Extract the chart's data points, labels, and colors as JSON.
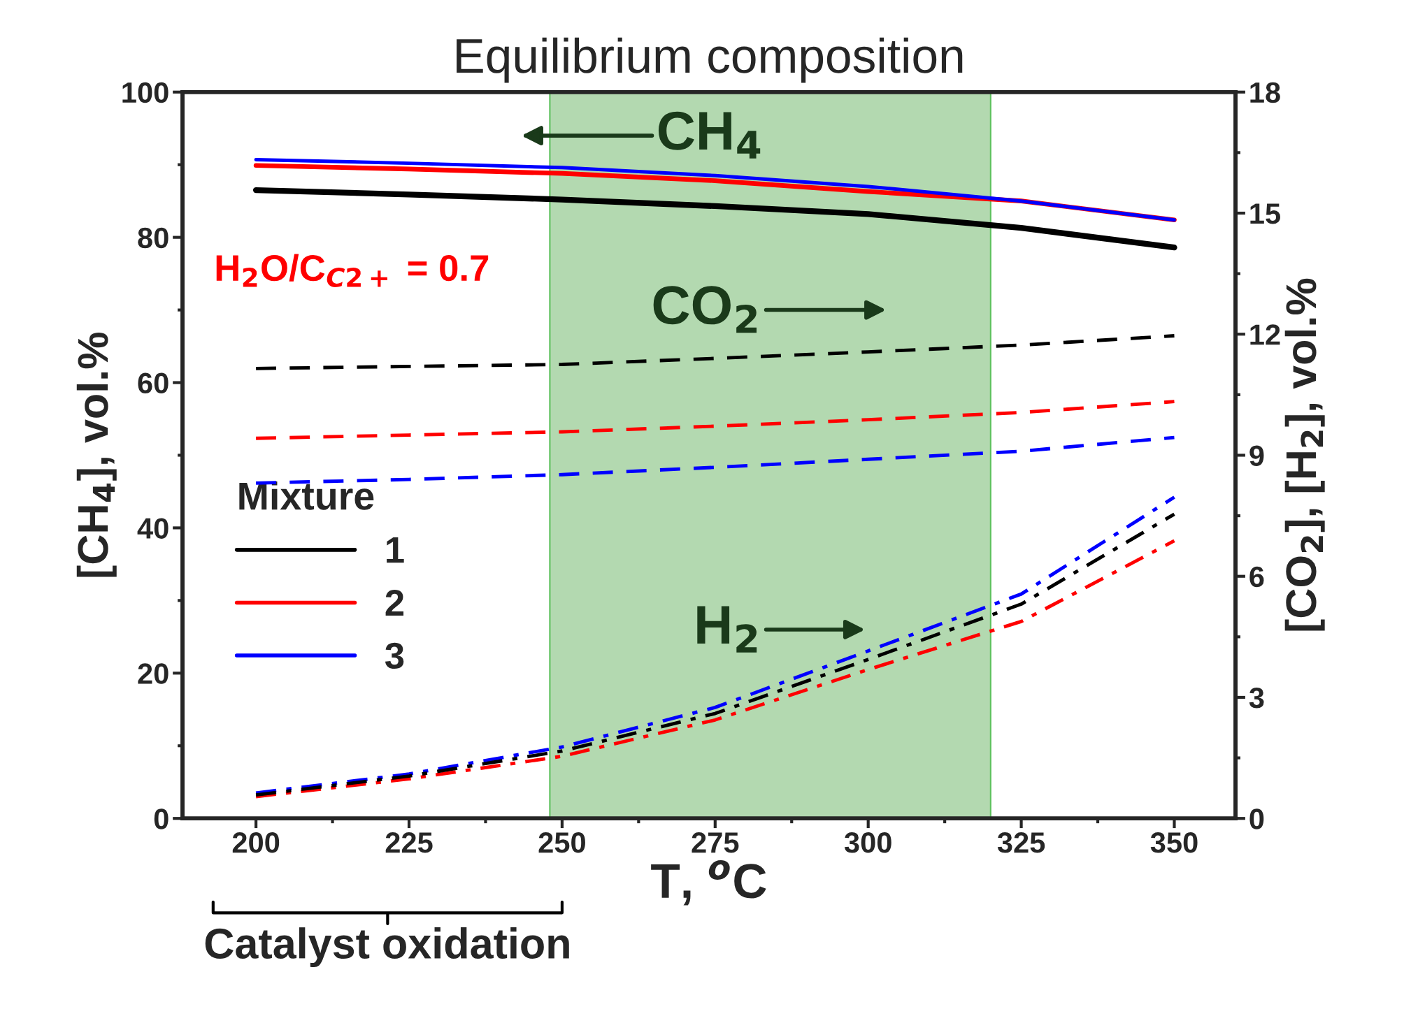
{
  "chart_data": {
    "type": "line",
    "title": "Equilibrium composition",
    "xlabel": "T, $^{o}$C",
    "ylabel": "[CH$_{4}$], vol.%",
    "y2label": "[CO$_{2}$], [H$_{2}$], vol.%",
    "legend_title": "Mixture",
    "x": [
      200,
      225,
      250,
      275,
      300,
      325,
      350
    ],
    "series": [
      {
        "name": "1",
        "color": "#000000",
        "line_style": "solid",
        "values": [
          86.5,
          85.9,
          85.2,
          84.3,
          83.2,
          81.3,
          78.6
        ]
      },
      {
        "name": "2",
        "color": "#ff0000",
        "line_style": "solid",
        "values": [
          89.9,
          89.4,
          88.8,
          87.8,
          86.3,
          85.0,
          82.4
        ]
      },
      {
        "name": "3",
        "color": "#0000ff",
        "line_style": "solid",
        "values": [
          90.7,
          90.2,
          89.6,
          88.5,
          87.0,
          85.0,
          82.4
        ]
      },
      {
        "color": "#000000",
        "line_style": "dashed",
        "axis": "y2",
        "values": [
          11.15,
          11.2,
          11.25,
          11.4,
          11.56,
          11.73,
          11.96
        ]
      },
      {
        "color": "#ff0000",
        "line_style": "dashed",
        "axis": "y2",
        "values": [
          9.42,
          9.5,
          9.58,
          9.72,
          9.88,
          10.06,
          10.33
        ]
      },
      {
        "color": "#0000ff",
        "line_style": "dashed",
        "axis": "y2",
        "values": [
          8.31,
          8.4,
          8.52,
          8.7,
          8.9,
          9.1,
          9.44
        ]
      },
      {
        "color": "#000000",
        "line_style": "dashdot",
        "axis": "y2",
        "values": [
          0.58,
          1.05,
          1.67,
          2.6,
          3.94,
          5.31,
          7.54
        ]
      },
      {
        "color": "#ff0000",
        "line_style": "dashdot",
        "axis": "y2",
        "values": [
          0.54,
          0.98,
          1.54,
          2.44,
          3.69,
          4.88,
          6.88
        ]
      },
      {
        "color": "#0000ff",
        "line_style": "dashdot",
        "axis": "y2",
        "values": [
          0.63,
          1.1,
          1.77,
          2.75,
          4.15,
          5.56,
          7.96
        ]
      }
    ],
    "bands": [
      {
        "axis": "x",
        "from": 248,
        "to": 320,
        "color": "#b3d9b0"
      }
    ],
    "annotations": [
      "CH$_{4}$",
      "CO$_{2}$",
      "H$_{2}$",
      "H$_{2}$O/C$_{C2+}$ = 0.7",
      "Catalyst oxidation"
    ],
    "xlim": [
      188,
      360
    ],
    "xticks": [
      200,
      225,
      250,
      275,
      300,
      325,
      350
    ],
    "ylim": [
      0,
      100
    ],
    "yticks": [
      0,
      20,
      40,
      60,
      80,
      100
    ],
    "y2lim": [
      0,
      18
    ],
    "y2ticks": [
      0,
      3,
      6,
      9,
      12,
      15,
      18
    ],
    "grid": false,
    "legend": "center left",
    "marker": "none"
  }
}
